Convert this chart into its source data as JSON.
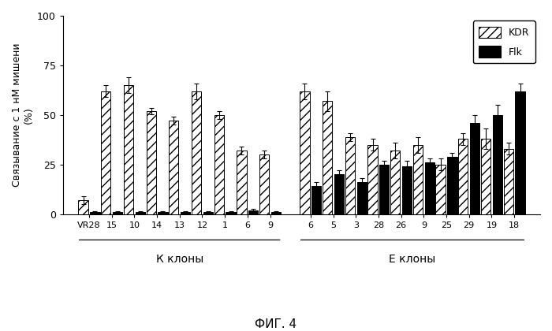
{
  "categories": [
    "VR28",
    "15",
    "10",
    "14",
    "13",
    "12",
    "1",
    "6",
    "9",
    "6",
    "5",
    "3",
    "28",
    "26",
    "9",
    "25",
    "29",
    "19",
    "18"
  ],
  "kdr_values": [
    7,
    62,
    65,
    52,
    47,
    62,
    50,
    32,
    30,
    62,
    57,
    39,
    35,
    32,
    35,
    25,
    38,
    38,
    33
  ],
  "flk_values": [
    1,
    1,
    1,
    1,
    1,
    1,
    1,
    2,
    1,
    14,
    20,
    16,
    25,
    24,
    26,
    29,
    46,
    50,
    62
  ],
  "kdr_errors": [
    2,
    3,
    4,
    1.5,
    2,
    4,
    2,
    2,
    2,
    4,
    5,
    2,
    3,
    4,
    4,
    3,
    3,
    5,
    3
  ],
  "flk_errors": [
    0.5,
    0.3,
    0.3,
    0.3,
    0.3,
    0.3,
    0.3,
    0.5,
    0.3,
    2,
    2,
    2,
    2,
    3,
    2,
    2,
    4,
    5,
    4
  ],
  "k_group_label": "К клоны",
  "e_group_label": "Е клоны",
  "ylabel": "Связывание с 1 нМ мишени\n(%)",
  "fig_label": "ФИГ. 4",
  "ylim": [
    0,
    100
  ],
  "yticks": [
    0,
    25,
    50,
    75,
    100
  ],
  "legend_kdr": "KDR",
  "legend_flk": "Flk",
  "kdr_hatch": "///",
  "kdr_facecolor": "#ffffff",
  "kdr_edgecolor": "#000000",
  "flk_facecolor": "#000000",
  "flk_edgecolor": "#000000",
  "k_group_indices": [
    0,
    1,
    2,
    3,
    4,
    5,
    6,
    7,
    8
  ],
  "e_group_indices": [
    9,
    10,
    11,
    12,
    13,
    14,
    15,
    16,
    17,
    18
  ],
  "background_color": "#ffffff"
}
